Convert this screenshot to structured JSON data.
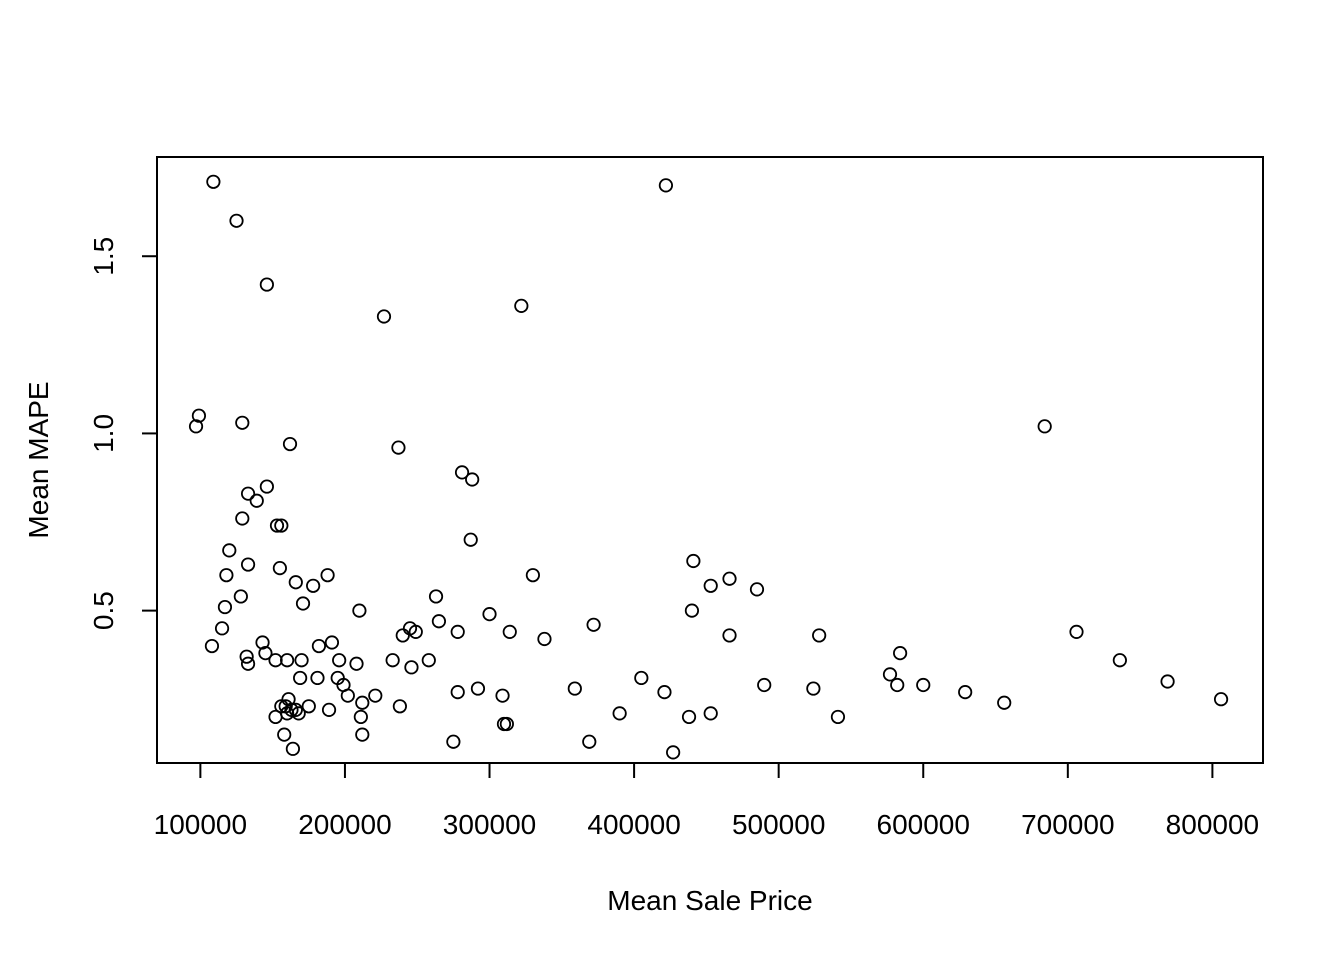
{
  "chart_data": {
    "type": "scatter",
    "title": "",
    "xlabel": "Mean Sale Price",
    "ylabel": "Mean MAPE",
    "xlim": [
      70000,
      835000
    ],
    "ylim": [
      0.07,
      1.78
    ],
    "x_ticks": [
      100000,
      200000,
      300000,
      400000,
      500000,
      600000,
      700000,
      800000
    ],
    "x_tick_labels": [
      "100000",
      "200000",
      "300000",
      "400000",
      "500000",
      "600000",
      "700000",
      "800000"
    ],
    "y_ticks": [
      0.5,
      1.0,
      1.5
    ],
    "y_tick_labels": [
      "0.5",
      "1.0",
      "1.5"
    ],
    "grid": false,
    "legend": "none",
    "marker": "open-circle",
    "points": [
      [
        109000,
        1.71
      ],
      [
        125000,
        1.6
      ],
      [
        146000,
        1.42
      ],
      [
        97000,
        1.02
      ],
      [
        99000,
        1.05
      ],
      [
        129000,
        1.03
      ],
      [
        162000,
        0.97
      ],
      [
        133000,
        0.83
      ],
      [
        139000,
        0.81
      ],
      [
        146000,
        0.85
      ],
      [
        129000,
        0.76
      ],
      [
        153000,
        0.74
      ],
      [
        156000,
        0.74
      ],
      [
        120000,
        0.67
      ],
      [
        133000,
        0.63
      ],
      [
        155000,
        0.62
      ],
      [
        118000,
        0.6
      ],
      [
        128000,
        0.54
      ],
      [
        117000,
        0.51
      ],
      [
        115000,
        0.45
      ],
      [
        108000,
        0.4
      ],
      [
        132000,
        0.37
      ],
      [
        133000,
        0.35
      ],
      [
        143000,
        0.41
      ],
      [
        145000,
        0.38
      ],
      [
        152000,
        0.36
      ],
      [
        160000,
        0.36
      ],
      [
        170000,
        0.36
      ],
      [
        166000,
        0.58
      ],
      [
        171000,
        0.52
      ],
      [
        178000,
        0.57
      ],
      [
        188000,
        0.6
      ],
      [
        169000,
        0.31
      ],
      [
        181000,
        0.31
      ],
      [
        182000,
        0.4
      ],
      [
        191000,
        0.41
      ],
      [
        196000,
        0.36
      ],
      [
        195000,
        0.31
      ],
      [
        199000,
        0.29
      ],
      [
        202000,
        0.26
      ],
      [
        208000,
        0.35
      ],
      [
        210000,
        0.5
      ],
      [
        212000,
        0.24
      ],
      [
        221000,
        0.26
      ],
      [
        211000,
        0.2
      ],
      [
        212000,
        0.15
      ],
      [
        189000,
        0.22
      ],
      [
        175000,
        0.23
      ],
      [
        161000,
        0.25
      ],
      [
        159000,
        0.23
      ],
      [
        156000,
        0.23
      ],
      [
        163000,
        0.22
      ],
      [
        166000,
        0.22
      ],
      [
        168000,
        0.21
      ],
      [
        160000,
        0.21
      ],
      [
        152000,
        0.2
      ],
      [
        158000,
        0.15
      ],
      [
        164000,
        0.11
      ],
      [
        227000,
        1.33
      ],
      [
        237000,
        0.96
      ],
      [
        233000,
        0.36
      ],
      [
        240000,
        0.43
      ],
      [
        245000,
        0.45
      ],
      [
        249000,
        0.44
      ],
      [
        246000,
        0.34
      ],
      [
        238000,
        0.23
      ],
      [
        258000,
        0.36
      ],
      [
        263000,
        0.54
      ],
      [
        265000,
        0.47
      ],
      [
        278000,
        0.44
      ],
      [
        278000,
        0.27
      ],
      [
        275000,
        0.13
      ],
      [
        281000,
        0.89
      ],
      [
        288000,
        0.87
      ],
      [
        287000,
        0.7
      ],
      [
        292000,
        0.28
      ],
      [
        300000,
        0.49
      ],
      [
        309000,
        0.26
      ],
      [
        314000,
        0.44
      ],
      [
        310000,
        0.18
      ],
      [
        312000,
        0.18
      ],
      [
        322000,
        1.36
      ],
      [
        330000,
        0.6
      ],
      [
        338000,
        0.42
      ],
      [
        359000,
        0.28
      ],
      [
        369000,
        0.13
      ],
      [
        372000,
        0.46
      ],
      [
        390000,
        0.21
      ],
      [
        405000,
        0.31
      ],
      [
        422000,
        1.7
      ],
      [
        421000,
        0.27
      ],
      [
        427000,
        0.1
      ],
      [
        438000,
        0.2
      ],
      [
        440000,
        0.5
      ],
      [
        441000,
        0.64
      ],
      [
        453000,
        0.57
      ],
      [
        453000,
        0.21
      ],
      [
        466000,
        0.59
      ],
      [
        466000,
        0.43
      ],
      [
        485000,
        0.56
      ],
      [
        490000,
        0.29
      ],
      [
        524000,
        0.28
      ],
      [
        528000,
        0.43
      ],
      [
        541000,
        0.2
      ],
      [
        577000,
        0.32
      ],
      [
        582000,
        0.29
      ],
      [
        584000,
        0.38
      ],
      [
        600000,
        0.29
      ],
      [
        629000,
        0.27
      ],
      [
        656000,
        0.24
      ],
      [
        684000,
        1.02
      ],
      [
        706000,
        0.44
      ],
      [
        736000,
        0.36
      ],
      [
        769000,
        0.3
      ],
      [
        806000,
        0.25
      ]
    ]
  }
}
